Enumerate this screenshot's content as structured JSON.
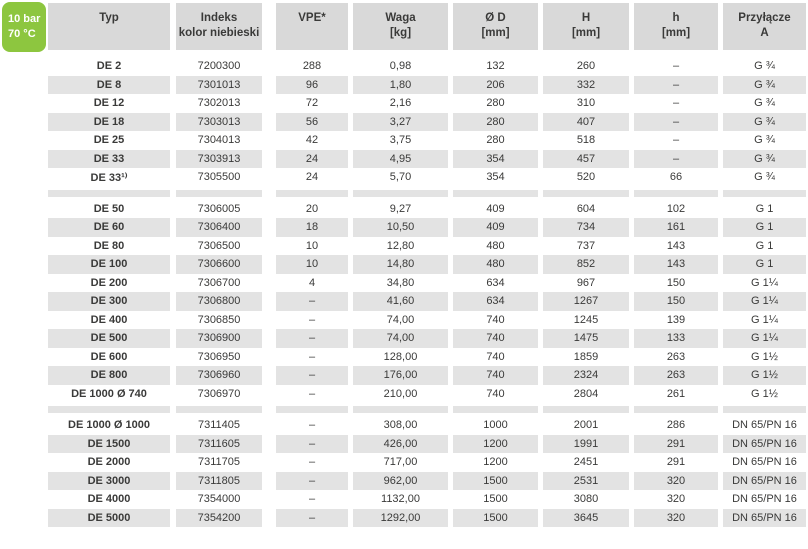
{
  "badge": {
    "pressure": "10 bar",
    "temperature": "70 °C",
    "color": "#8dc63f"
  },
  "table": {
    "headers": [
      {
        "id": "typ",
        "lines": [
          "Typ"
        ]
      },
      {
        "id": "indeks",
        "lines": [
          "Indeks",
          "kolor niebieski"
        ]
      },
      {
        "id": "vpe",
        "lines": [
          "VPE*"
        ]
      },
      {
        "id": "waga",
        "lines": [
          "Waga",
          "[kg]"
        ]
      },
      {
        "id": "srednica-d",
        "lines": [
          "Ø D",
          "[mm]"
        ]
      },
      {
        "id": "wysokosc-h",
        "lines": [
          "H",
          "[mm]"
        ]
      },
      {
        "id": "wysokosc-h-male",
        "lines": [
          "h",
          "[mm]"
        ]
      },
      {
        "id": "przylacze",
        "lines": [
          "Przyłącze",
          "A"
        ]
      }
    ],
    "groups": [
      {
        "rows": [
          [
            "DE 2",
            "7200300",
            "288",
            "0,98",
            "132",
            "260",
            "–",
            "G ¾"
          ],
          [
            "DE 8",
            "7301013",
            "96",
            "1,80",
            "206",
            "332",
            "–",
            "G ¾"
          ],
          [
            "DE 12",
            "7302013",
            "72",
            "2,16",
            "280",
            "310",
            "–",
            "G ¾"
          ],
          [
            "DE 18",
            "7303013",
            "56",
            "3,27",
            "280",
            "407",
            "–",
            "G ¾"
          ],
          [
            "DE 25",
            "7304013",
            "42",
            "3,75",
            "280",
            "518",
            "–",
            "G ¾"
          ],
          [
            "DE 33",
            "7303913",
            "24",
            "4,95",
            "354",
            "457",
            "–",
            "G ¾"
          ],
          [
            "DE 33¹⁾",
            "7305500",
            "24",
            "5,70",
            "354",
            "520",
            "66",
            "G ¾"
          ]
        ]
      },
      {
        "rows": [
          [
            "DE 50",
            "7306005",
            "20",
            "9,27",
            "409",
            "604",
            "102",
            "G 1"
          ],
          [
            "DE 60",
            "7306400",
            "18",
            "10,50",
            "409",
            "734",
            "161",
            "G 1"
          ],
          [
            "DE 80",
            "7306500",
            "10",
            "12,80",
            "480",
            "737",
            "143",
            "G 1"
          ],
          [
            "DE 100",
            "7306600",
            "10",
            "14,80",
            "480",
            "852",
            "143",
            "G 1"
          ],
          [
            "DE 200",
            "7306700",
            "4",
            "34,80",
            "634",
            "967",
            "150",
            "G 1¼"
          ],
          [
            "DE 300",
            "7306800",
            "–",
            "41,60",
            "634",
            "1267",
            "150",
            "G 1¼"
          ],
          [
            "DE 400",
            "7306850",
            "–",
            "74,00",
            "740",
            "1245",
            "139",
            "G 1¼"
          ],
          [
            "DE 500",
            "7306900",
            "–",
            "74,00",
            "740",
            "1475",
            "133",
            "G 1¼"
          ],
          [
            "DE 600",
            "7306950",
            "–",
            "128,00",
            "740",
            "1859",
            "263",
            "G 1½"
          ],
          [
            "DE 800",
            "7306960",
            "–",
            "176,00",
            "740",
            "2324",
            "263",
            "G 1½"
          ],
          [
            "DE 1000 Ø 740",
            "7306970",
            "–",
            "210,00",
            "740",
            "2804",
            "261",
            "G 1½"
          ]
        ]
      },
      {
        "rows": [
          [
            "DE 1000 Ø 1000",
            "7311405",
            "–",
            "308,00",
            "1000",
            "2001",
            "286",
            "DN 65/PN 16"
          ],
          [
            "DE 1500",
            "7311605",
            "–",
            "426,00",
            "1200",
            "1991",
            "291",
            "DN 65/PN 16"
          ],
          [
            "DE 2000",
            "7311705",
            "–",
            "717,00",
            "1200",
            "2451",
            "291",
            "DN 65/PN 16"
          ],
          [
            "DE 3000",
            "7311805",
            "–",
            "962,00",
            "1500",
            "2531",
            "320",
            "DN 65/PN 16"
          ],
          [
            "DE 4000",
            "7354000",
            "–",
            "1132,00",
            "1500",
            "3080",
            "320",
            "DN 65/PN 16"
          ],
          [
            "DE 5000",
            "7354200",
            "–",
            "1292,00",
            "1500",
            "3645",
            "320",
            "DN 65/PN 16"
          ]
        ]
      }
    ]
  },
  "colors": {
    "badge_green": "#8dc63f",
    "header_gray": "#d9d9d9",
    "stripe_gray": "#e3e3e3",
    "text": "#3a3a39"
  }
}
